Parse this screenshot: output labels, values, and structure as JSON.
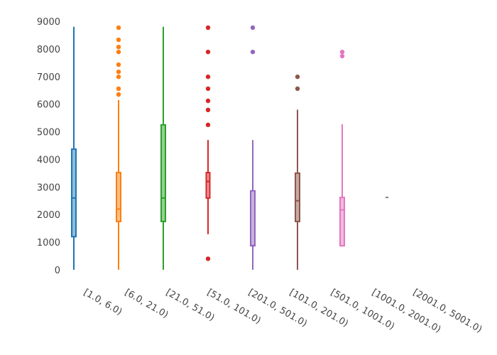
{
  "chart_data": {
    "type": "box",
    "title": "",
    "xlabel": "",
    "ylabel": "",
    "ylim": [
      0,
      9000
    ],
    "yticks": [
      0,
      1000,
      2000,
      3000,
      4000,
      5000,
      6000,
      7000,
      8000,
      9000
    ],
    "ytick_labels": [
      "0",
      "1000",
      "2000",
      "3000",
      "4000",
      "5000",
      "6000",
      "7000",
      "8000",
      "9000"
    ],
    "grid": false,
    "legend": "none",
    "categories": [
      "[1.0, 6.0)",
      "[6.0, 21.0)",
      "[21.0, 51.0)",
      "[51.0, 101.0)",
      "[201.0, 501.0)",
      "[101.0, 201.0)",
      "[501.0, 1001.0)",
      "[1001.0, 2001.0)",
      "[2001.0, 5001.0)"
    ],
    "series": [
      {
        "name": "[1.0, 6.0)",
        "color": "#1f77b4",
        "min": 0,
        "q1": 1200,
        "median": 2600,
        "q3": 4370,
        "max": 8800,
        "outliers": []
      },
      {
        "name": "[6.0, 21.0)",
        "color": "#ff7f0e",
        "min": 0,
        "q1": 1750,
        "median": 2200,
        "q3": 3520,
        "max": 6150,
        "outliers": [
          8770,
          8330,
          8070,
          7890,
          7430,
          7170,
          6990,
          6560,
          6350
        ]
      },
      {
        "name": "[21.0, 51.0)",
        "color": "#2ca02c",
        "min": 0,
        "q1": 1750,
        "median": 2600,
        "q3": 5250,
        "max": 8800,
        "outliers": []
      },
      {
        "name": "[51.0, 101.0)",
        "color": "#d62728",
        "min": 1290,
        "q1": 2600,
        "median": 3200,
        "q3": 3520,
        "max": 4700,
        "outliers": [
          8770,
          7890,
          6990,
          6560,
          6120,
          5790,
          5250,
          400
        ]
      },
      {
        "name": "[201.0, 501.0)",
        "color": "#9467bd",
        "min": 0,
        "q1": 870,
        "median": 880,
        "q3": 2860,
        "max": 4700,
        "outliers": [
          8770,
          7890
        ]
      },
      {
        "name": "[101.0, 201.0)",
        "color": "#8c564b",
        "min": 0,
        "q1": 1750,
        "median": 2500,
        "q3": 3500,
        "max": 5800,
        "outliers": [
          6990,
          6560
        ]
      },
      {
        "name": "[501.0, 1001.0)",
        "color": "#e377c2",
        "min": 870,
        "q1": 870,
        "median": 2170,
        "q3": 2620,
        "max": 5270,
        "outliers": [
          7890,
          7740
        ]
      },
      {
        "name": "[1001.0, 2001.0)",
        "color": "#7f7f7f",
        "min": 2620,
        "q1": 2620,
        "median": 2620,
        "q3": 2620,
        "max": 2620,
        "outliers": []
      },
      {
        "name": "[2001.0, 5001.0)",
        "color": "#bcbd22",
        "min": null,
        "q1": null,
        "median": null,
        "q3": null,
        "max": null,
        "outliers": []
      }
    ]
  }
}
